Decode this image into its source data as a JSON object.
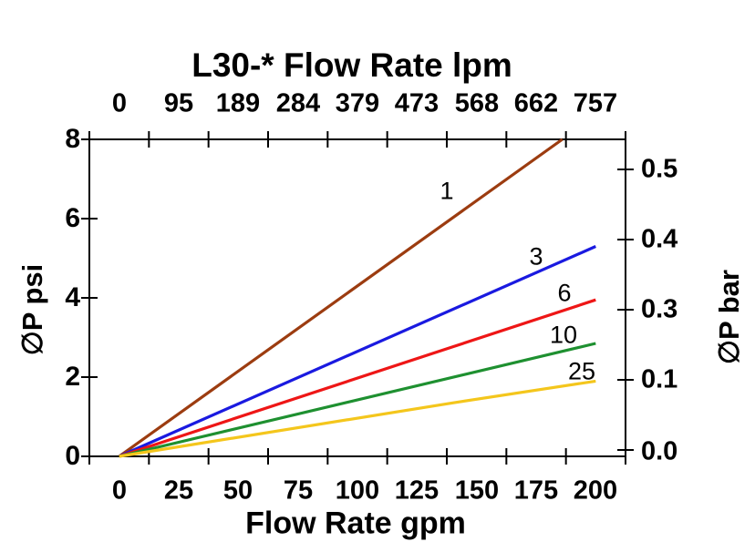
{
  "chart_data": {
    "type": "line",
    "title": "L30-* Flow Rate lpm",
    "xlabel": "Flow Rate gpm",
    "ylabel_left": "∅P psi",
    "ylabel_right": "∅P bar",
    "frame_color": "#000000",
    "grid": false,
    "legend_position": "inline-labels-on-lines",
    "x_axis_bottom": {
      "unit": "gpm",
      "tick_labels": [
        "0",
        "25",
        "50",
        "75",
        "100",
        "125",
        "150",
        "175",
        "200"
      ],
      "range": [
        0,
        200
      ]
    },
    "x_axis_top": {
      "unit": "lpm",
      "tick_labels": [
        "0",
        "95",
        "189",
        "284",
        "379",
        "473",
        "568",
        "662",
        "757"
      ],
      "range": [
        0,
        757
      ]
    },
    "y_axis_left": {
      "unit": "psi",
      "tick_labels": [
        "8",
        "6",
        "4",
        "2",
        "0"
      ],
      "range": [
        0,
        8
      ]
    },
    "y_axis_right": {
      "unit": "bar",
      "tick_labels": [
        "0.5",
        "0.4",
        "0.3",
        "0.1",
        "0.0"
      ]
    },
    "series": [
      {
        "name": "1",
        "color": "#9C3C10",
        "points_gpm_psi": [
          [
            0,
            0
          ],
          [
            186,
            8.0
          ]
        ]
      },
      {
        "name": "3",
        "color": "#1A1AE0",
        "points_gpm_psi": [
          [
            0,
            0
          ],
          [
            200,
            5.3
          ]
        ]
      },
      {
        "name": "6",
        "color": "#EE1616",
        "points_gpm_psi": [
          [
            0,
            0
          ],
          [
            200,
            3.95
          ]
        ]
      },
      {
        "name": "10",
        "color": "#1E9030",
        "points_gpm_psi": [
          [
            0,
            0
          ],
          [
            200,
            2.85
          ]
        ]
      },
      {
        "name": "25",
        "color": "#F4C61C",
        "points_gpm_psi": [
          [
            0,
            0
          ],
          [
            140,
            1.35
          ],
          [
            200,
            1.9
          ]
        ]
      }
    ]
  }
}
